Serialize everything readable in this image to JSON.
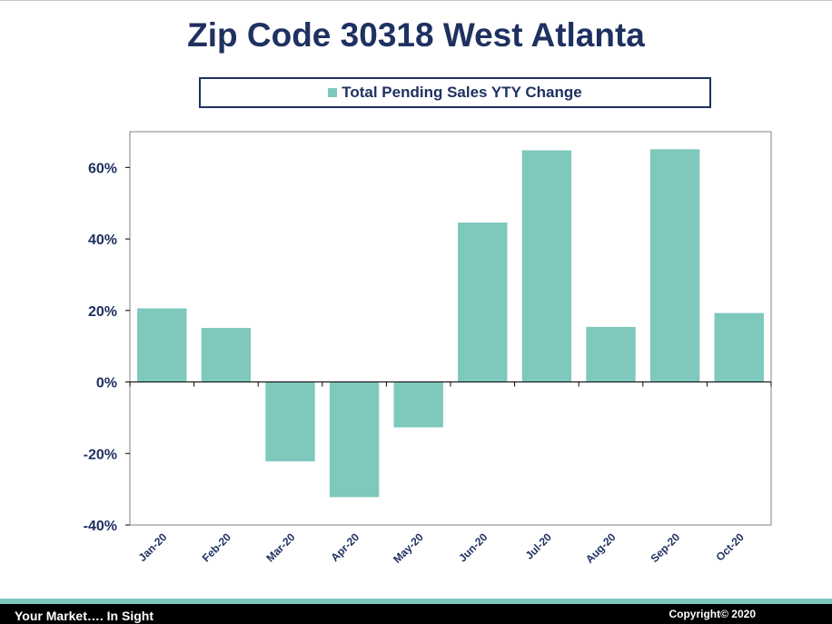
{
  "page": {
    "title": "Zip Code 30318 West Atlanta",
    "footer_left": "Your Market…. In Sight",
    "footer_right": "Copyright© 2020"
  },
  "colors": {
    "bar": "#7ec8bd",
    "text": "#1f3160",
    "footer_band": "#7ec8bd",
    "footer_bg": "#000000"
  },
  "chart_data": {
    "type": "bar",
    "categories": [
      "Jan-20",
      "Feb-20",
      "Mar-20",
      "Apr-20",
      "May-20",
      "Jun-20",
      "Jul-20",
      "Aug-20",
      "Sep-20",
      "Oct-20"
    ],
    "series": [
      {
        "name": "Total Pending Sales YTY Change",
        "values": [
          20.6,
          15.1,
          -22.2,
          -32.2,
          -12.7,
          44.6,
          64.8,
          15.4,
          65.1,
          19.3
        ]
      }
    ],
    "ylim": [
      -40,
      70
    ],
    "yticks": [
      -40,
      -20,
      0,
      20,
      40,
      60
    ],
    "ytick_labels": [
      "-40%",
      "-20%",
      "0%",
      "20%",
      "40%",
      "60%"
    ],
    "legend_position": "top",
    "grid": false
  }
}
